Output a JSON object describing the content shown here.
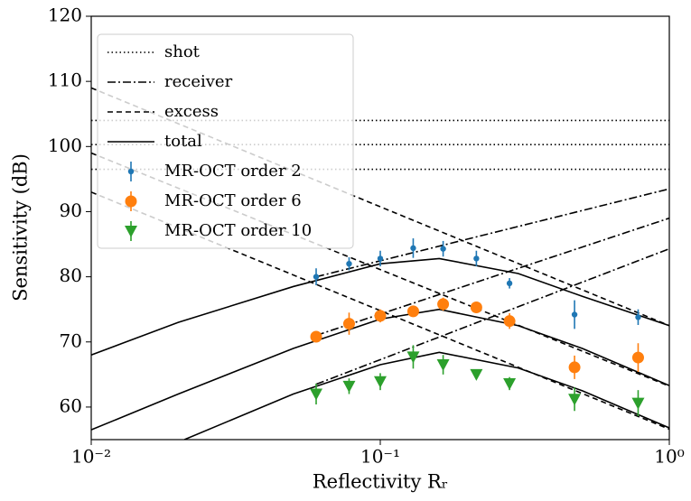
{
  "chart_data": {
    "type": "line",
    "xlabel": "Reflectivity Rᵣ",
    "ylabel": "Sensitivity (dB)",
    "xscale": "log",
    "xlim": [
      0.01,
      1
    ],
    "ylim": [
      55,
      120
    ],
    "xticks": [
      {
        "value": 0.01,
        "label": "10⁻²"
      },
      {
        "value": 0.1,
        "label": "10⁻¹"
      },
      {
        "value": 1,
        "label": "10⁰"
      }
    ],
    "yticks": [
      60,
      70,
      80,
      90,
      100,
      110,
      120
    ],
    "legend": "upper left",
    "line_groups": [
      {
        "name": "shot",
        "style": "dotted",
        "color": "#000000",
        "lines": [
          {
            "x": [
              0.01,
              1
            ],
            "values": [
              104,
              104
            ]
          },
          {
            "x": [
              0.01,
              1
            ],
            "values": [
              100.3,
              100.3
            ]
          },
          {
            "x": [
              0.01,
              1
            ],
            "values": [
              96.5,
              96.5
            ]
          }
        ]
      },
      {
        "name": "receiver",
        "style": "dashdot",
        "color": "#000000",
        "lines": [
          {
            "x": [
              0.06,
              1
            ],
            "values": [
              80,
              93.5
            ]
          },
          {
            "x": [
              0.06,
              1
            ],
            "values": [
              71,
              89
            ]
          },
          {
            "x": [
              0.06,
              1
            ],
            "values": [
              63.5,
              84.3
            ]
          }
        ]
      },
      {
        "name": "excess",
        "style": "dashed",
        "color": "#000000",
        "lines": [
          {
            "x": [
              0.01,
              1
            ],
            "values": [
              109,
              72.5
            ]
          },
          {
            "x": [
              0.01,
              1
            ],
            "values": [
              99,
              63.2
            ]
          },
          {
            "x": [
              0.01,
              1
            ],
            "values": [
              93,
              56.6
            ]
          }
        ]
      },
      {
        "name": "total",
        "style": "solid",
        "color": "#000000",
        "lines": [
          {
            "x": [
              0.01,
              0.02,
              0.05,
              0.1,
              0.16,
              0.3,
              0.5,
              1
            ],
            "values": [
              68,
              73,
              78.5,
              82,
              82.8,
              80.5,
              77,
              72.5
            ]
          },
          {
            "x": [
              0.01,
              0.02,
              0.05,
              0.1,
              0.16,
              0.3,
              0.5,
              1
            ],
            "values": [
              56.5,
              62,
              69,
              73.5,
              75,
              72.5,
              69,
              63.3
            ]
          },
          {
            "x": [
              0.021,
              0.05,
              0.1,
              0.16,
              0.3,
              0.5,
              1
            ],
            "values": [
              55,
              62,
              66.5,
              68.4,
              66,
              62.5,
              56.8
            ]
          }
        ]
      }
    ],
    "series": [
      {
        "name": "MR-OCT order 2",
        "color": "#1f77b4",
        "marker": "circle-small",
        "x": [
          0.06,
          0.078,
          0.1,
          0.13,
          0.165,
          0.215,
          0.28,
          0.47,
          0.78
        ],
        "values": [
          80,
          82,
          82.8,
          84.4,
          84.3,
          82.8,
          79,
          74.2,
          73.8
        ],
        "errors": [
          1.3,
          1,
          1.2,
          1.5,
          1.2,
          1.2,
          0.8,
          2.2,
          1.2
        ]
      },
      {
        "name": "MR-OCT order 6",
        "color": "#ff7f0e",
        "marker": "circle",
        "x": [
          0.06,
          0.078,
          0.1,
          0.13,
          0.165,
          0.215,
          0.28,
          0.47,
          0.78
        ],
        "values": [
          70.8,
          72.8,
          74,
          74.7,
          75.8,
          75.3,
          73.2,
          66.1,
          67.6
        ],
        "errors": [
          0.5,
          1.7,
          1,
          0.5,
          1,
          0.6,
          1.2,
          1.8,
          2.2
        ]
      },
      {
        "name": "MR-OCT order 10",
        "color": "#2ca02c",
        "marker": "triangle-down",
        "x": [
          0.06,
          0.078,
          0.1,
          0.13,
          0.165,
          0.215,
          0.28,
          0.47,
          0.78
        ],
        "values": [
          62,
          63.2,
          63.9,
          67.7,
          66.5,
          65,
          63.6,
          61.2,
          60.6
        ],
        "errors": [
          1.6,
          1.2,
          1.3,
          1.8,
          1.5,
          0.6,
          1,
          1.8,
          2
        ]
      }
    ]
  }
}
